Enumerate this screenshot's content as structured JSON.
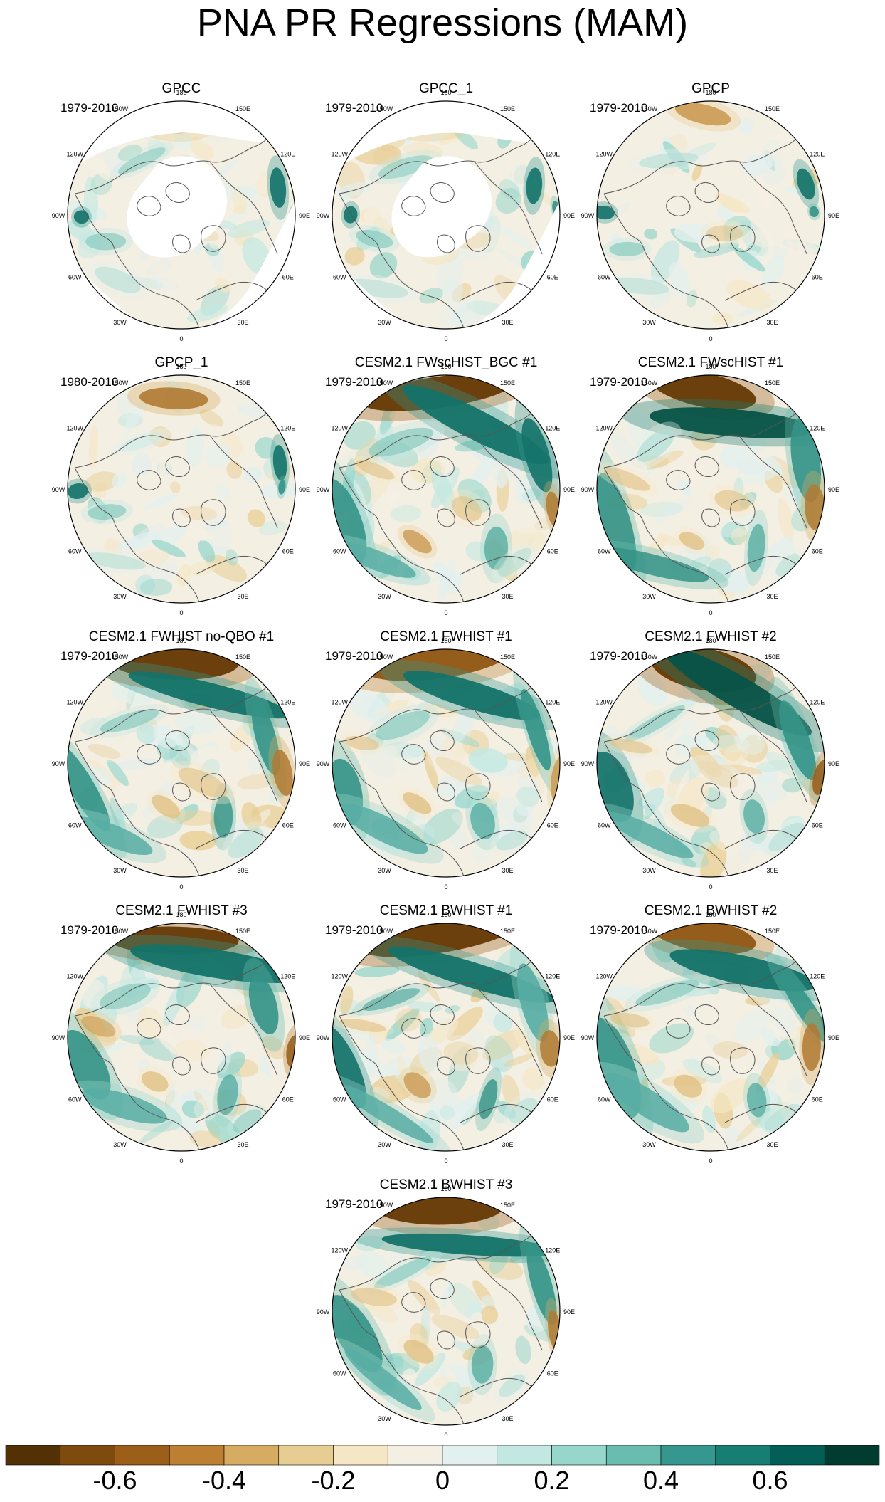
{
  "title": "PNA PR Regressions (MAM)",
  "panels": [
    {
      "title": "GPCC",
      "period": "1979-2010",
      "field": "gpcc"
    },
    {
      "title": "GPCC_1",
      "period": "1979-2010",
      "field": "gpcc"
    },
    {
      "title": "GPCP",
      "period": "1979-2010",
      "field": "gpcp"
    },
    {
      "title": "GPCP_1",
      "period": "1980-2010",
      "field": "gpcp"
    },
    {
      "title": "CESM2.1 FWscHIST_BGC #1",
      "period": "1979-2010",
      "field": "model"
    },
    {
      "title": "CESM2.1 FWscHIST #1",
      "period": "1979-2010",
      "field": "model"
    },
    {
      "title": "CESM2.1 FWHIST no-QBO #1",
      "period": "1979-2010",
      "field": "model"
    },
    {
      "title": "CESM2.1 FWHIST #1",
      "period": "1979-2010",
      "field": "model"
    },
    {
      "title": "CESM2.1 FWHIST #2",
      "period": "1979-2010",
      "field": "model"
    },
    {
      "title": "CESM2.1 FWHIST #3",
      "period": "1979-2010",
      "field": "model"
    },
    {
      "title": "CESM2.1 BWHIST #1",
      "period": "1979-2010",
      "field": "model"
    },
    {
      "title": "CESM2.1 BWHIST #2",
      "period": "1979-2010",
      "field": "model"
    },
    {
      "title": "CESM2.1 BWHIST #3",
      "period": "1979-2010",
      "field": "model"
    }
  ],
  "longitude_labels": [
    "180",
    "150E",
    "120E",
    "90E",
    "60E",
    "30E",
    "0",
    "30W",
    "60W",
    "90W",
    "120W",
    "150W"
  ],
  "colorbar": {
    "colors": [
      "#543005",
      "#7f4a0e",
      "#9c5f1a",
      "#bd8033",
      "#d6ac62",
      "#e8cd92",
      "#f5e7c6",
      "#f4efe3",
      "#e2f0ee",
      "#c3e8e2",
      "#97d6cb",
      "#69bcae",
      "#35978f",
      "#187d72",
      "#035f55",
      "#003c30"
    ],
    "tick_labels": [
      "-0.6",
      "-0.4",
      "-0.2",
      "0",
      "0.2",
      "0.4",
      "0.6"
    ]
  }
}
